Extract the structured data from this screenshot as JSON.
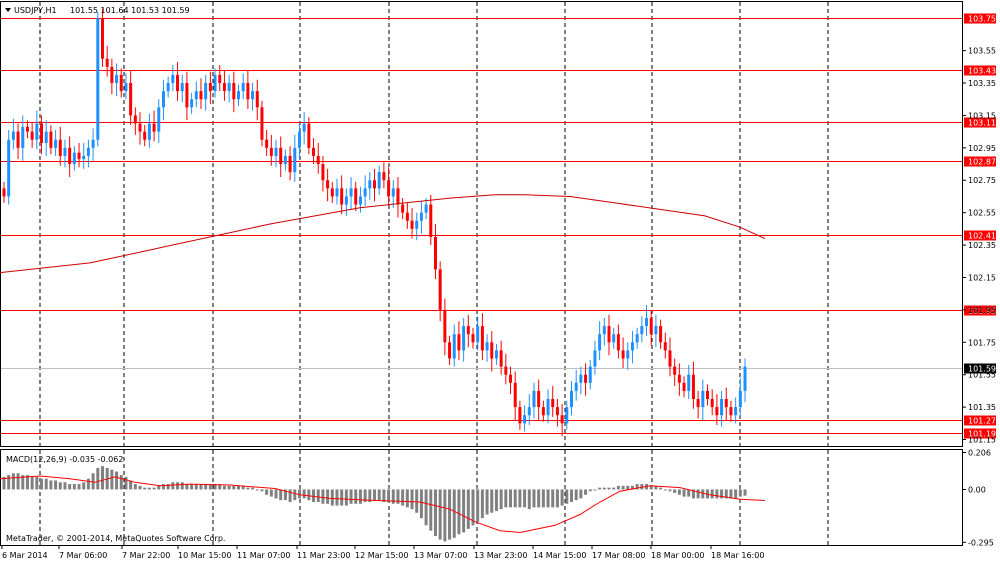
{
  "header": {
    "symbol_timeframe": "USDJPY,H1",
    "ohlc": "101.55 101.64 101.53 101.59"
  },
  "copyright": "MetaTrader, © 2001-2014, MetaQuotes Software Corp.",
  "macd_label": "MACD(12,26,9) -0.035 -0.062",
  "colors": {
    "bull": "#1e90ff",
    "bear": "#ff0000",
    "level_line": "#ff0000",
    "ma_line": "#cc0000",
    "macd_hist": "#808080",
    "macd_signal": "#ff0000",
    "grid": "#000000"
  },
  "chart_data": [
    {
      "type": "candlestick",
      "symbol": "USDJPY",
      "timeframe": "H1",
      "y_ticks": [
        "103.55",
        "103.35",
        "103.15",
        "102.95",
        "102.75",
        "102.55",
        "102.35",
        "102.15",
        "101.95",
        "101.75",
        "101.55",
        "101.35",
        "101.15"
      ],
      "ylim": [
        101.11,
        103.85
      ],
      "x_ticks": [
        "6 Mar 2014",
        "7 Mar 06:00",
        "7 Mar 22:00",
        "10 Mar 15:00",
        "11 Mar 07:00",
        "11 Mar 23:00",
        "12 Mar 15:00",
        "13 Mar 07:00",
        "13 Mar 23:00",
        "14 Mar 15:00",
        "17 Mar 08:00",
        "18 Mar 00:00",
        "18 Mar 16:00"
      ],
      "current_price": "101.59",
      "levels": [
        {
          "label": "103.75",
          "value": 103.75
        },
        {
          "label": "103.43",
          "value": 103.43
        },
        {
          "label": "103.11",
          "value": 103.11
        },
        {
          "label": "102.87",
          "value": 102.87
        },
        {
          "label": "102.41",
          "value": 102.41
        },
        {
          "label": "101.95",
          "value": 101.95
        },
        {
          "label": "101.27",
          "value": 101.27
        },
        {
          "label": "101.19",
          "value": 101.19
        }
      ],
      "moving_average": [
        [
          0,
          102.18
        ],
        [
          45,
          102.21
        ],
        [
          90,
          102.24
        ],
        [
          135,
          102.3
        ],
        [
          180,
          102.36
        ],
        [
          225,
          102.42
        ],
        [
          270,
          102.48
        ],
        [
          315,
          102.53
        ],
        [
          360,
          102.58
        ],
        [
          405,
          102.61
        ],
        [
          450,
          102.64
        ],
        [
          495,
          102.66
        ],
        [
          525,
          102.66
        ],
        [
          570,
          102.65
        ],
        [
          615,
          102.61
        ],
        [
          660,
          102.57
        ],
        [
          705,
          102.53
        ],
        [
          740,
          102.46
        ],
        [
          765,
          102.39
        ]
      ],
      "closes": [
        102.65,
        103.0,
        103.05,
        102.95,
        103.08,
        103.05,
        103.0,
        103.1,
        102.98,
        103.05,
        102.95,
        103.0,
        102.9,
        102.95,
        102.85,
        102.92,
        102.88,
        102.9,
        102.95,
        103.0,
        103.75,
        103.5,
        103.45,
        103.35,
        103.4,
        103.3,
        103.35,
        103.15,
        103.1,
        103.05,
        103.0,
        103.1,
        103.05,
        103.2,
        103.3,
        103.35,
        103.4,
        103.3,
        103.35,
        103.2,
        103.25,
        103.3,
        103.25,
        103.35,
        103.3,
        103.4,
        103.35,
        103.3,
        103.35,
        103.25,
        103.3,
        103.35,
        103.25,
        103.3,
        103.2,
        103.0,
        102.95,
        102.9,
        102.95,
        102.85,
        102.9,
        102.8,
        102.95,
        103.05,
        103.1,
        102.95,
        102.9,
        102.85,
        102.75,
        102.7,
        102.65,
        102.7,
        102.6,
        102.65,
        102.7,
        102.6,
        102.65,
        102.7,
        102.75,
        102.7,
        102.8,
        102.75,
        102.65,
        102.7,
        102.6,
        102.55,
        102.5,
        102.45,
        102.5,
        102.55,
        102.6,
        102.4,
        102.2,
        101.95,
        101.75,
        101.65,
        101.8,
        101.7,
        101.85,
        101.8,
        101.75,
        101.85,
        101.7,
        101.75,
        101.65,
        101.7,
        101.6,
        101.55,
        101.5,
        101.35,
        101.25,
        101.3,
        101.35,
        101.45,
        101.35,
        101.3,
        101.4,
        101.35,
        101.3,
        101.25,
        101.35,
        101.45,
        101.5,
        101.55,
        101.5,
        101.6,
        101.7,
        101.8,
        101.85,
        101.75,
        101.8,
        101.7,
        101.65,
        101.7,
        101.75,
        101.8,
        101.85,
        101.9,
        101.8,
        101.85,
        101.75,
        101.7,
        101.6,
        101.55,
        101.5,
        101.45,
        101.55,
        101.4,
        101.35,
        101.45,
        101.4,
        101.35,
        101.3,
        101.4,
        101.35,
        101.3,
        101.35,
        101.45,
        101.6
      ],
      "macd": {
        "ylim": [
          -0.31,
          0.22
        ],
        "y_ticks": [
          "0.206",
          "0.00",
          "-0.295"
        ],
        "histogram": [
          0.07,
          0.08,
          0.09,
          0.09,
          0.08,
          0.08,
          0.07,
          0.07,
          0.06,
          0.06,
          0.05,
          0.05,
          0.04,
          0.04,
          0.03,
          0.03,
          0.03,
          0.04,
          0.06,
          0.09,
          0.12,
          0.13,
          0.12,
          0.11,
          0.1,
          0.08,
          0.07,
          0.05,
          0.03,
          0.02,
          0.01,
          0.01,
          0.01,
          0.02,
          0.03,
          0.03,
          0.04,
          0.04,
          0.04,
          0.03,
          0.03,
          0.03,
          0.03,
          0.03,
          0.03,
          0.03,
          0.03,
          0.02,
          0.02,
          0.02,
          0.02,
          0.02,
          0.01,
          0.01,
          0.0,
          -0.01,
          -0.03,
          -0.04,
          -0.05,
          -0.06,
          -0.06,
          -0.07,
          -0.06,
          -0.05,
          -0.05,
          -0.06,
          -0.07,
          -0.07,
          -0.08,
          -0.08,
          -0.09,
          -0.09,
          -0.09,
          -0.09,
          -0.08,
          -0.08,
          -0.08,
          -0.07,
          -0.07,
          -0.06,
          -0.06,
          -0.07,
          -0.07,
          -0.08,
          -0.08,
          -0.09,
          -0.1,
          -0.11,
          -0.13,
          -0.16,
          -0.2,
          -0.23,
          -0.26,
          -0.28,
          -0.29,
          -0.28,
          -0.27,
          -0.25,
          -0.24,
          -0.22,
          -0.2,
          -0.18,
          -0.16,
          -0.14,
          -0.13,
          -0.12,
          -0.11,
          -0.1,
          -0.1,
          -0.1,
          -0.1,
          -0.1,
          -0.11,
          -0.1,
          -0.1,
          -0.1,
          -0.1,
          -0.1,
          -0.1,
          -0.09,
          -0.08,
          -0.07,
          -0.06,
          -0.05,
          -0.03,
          -0.01,
          0.0,
          0.01,
          0.01,
          0.01,
          0.01,
          0.02,
          0.02,
          0.02,
          0.02,
          0.03,
          0.03,
          0.03,
          0.02,
          0.02,
          0.01,
          0.0,
          -0.01,
          -0.02,
          -0.03,
          -0.04,
          -0.04,
          -0.05,
          -0.05,
          -0.05,
          -0.05,
          -0.05,
          -0.05,
          -0.05,
          -0.05,
          -0.05,
          -0.05,
          -0.04,
          -0.035
        ],
        "signal": [
          [
            0,
            0.06
          ],
          [
            40,
            0.075
          ],
          [
            70,
            0.06
          ],
          [
            95,
            0.04
          ],
          [
            115,
            0.07
          ],
          [
            135,
            0.04
          ],
          [
            160,
            0.02
          ],
          [
            190,
            0.03
          ],
          [
            230,
            0.025
          ],
          [
            275,
            0.005
          ],
          [
            300,
            -0.03
          ],
          [
            330,
            -0.05
          ],
          [
            370,
            -0.06
          ],
          [
            420,
            -0.07
          ],
          [
            450,
            -0.11
          ],
          [
            475,
            -0.18
          ],
          [
            500,
            -0.23
          ],
          [
            520,
            -0.24
          ],
          [
            555,
            -0.2
          ],
          [
            580,
            -0.14
          ],
          [
            600,
            -0.07
          ],
          [
            620,
            -0.01
          ],
          [
            650,
            0.02
          ],
          [
            680,
            0.01
          ],
          [
            710,
            -0.03
          ],
          [
            740,
            -0.055
          ],
          [
            765,
            -0.062
          ]
        ]
      }
    }
  ]
}
